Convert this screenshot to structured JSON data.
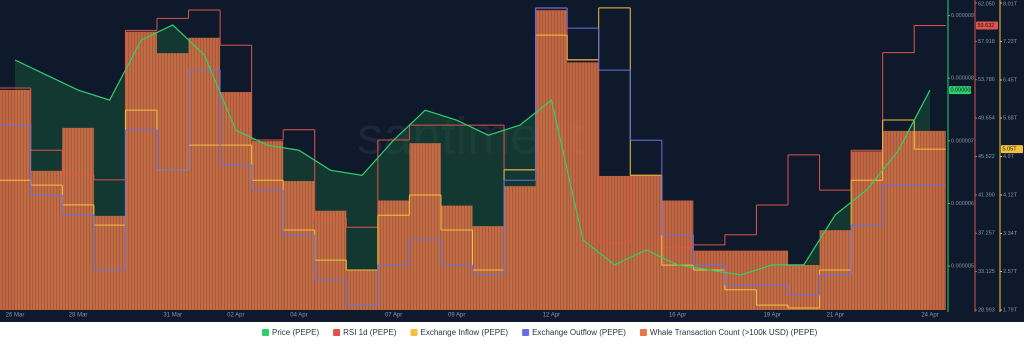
{
  "chart_data": {
    "type": "combo",
    "watermark": "santiment",
    "categories": [
      "26 Mar",
      null,
      "28 Mar",
      null,
      null,
      "31 Mar",
      null,
      "02 Apr",
      null,
      "04 Apr",
      null,
      null,
      "07 Apr",
      null,
      "09 Apr",
      null,
      null,
      "12 Apr",
      null,
      null,
      null,
      "16 Apr",
      null,
      null,
      "19 Apr",
      null,
      "21 Apr",
      null,
      null,
      "24 Apr"
    ],
    "ylim": [
      4.3e-06,
      9.2e-06
    ],
    "yticks": [
      5e-06,
      6e-06,
      7e-06,
      8e-06,
      9e-06
    ],
    "y2lim": [
      28.993,
      62.05
    ],
    "y2ticks": [
      {
        "value": 62.05,
        "label": "62.050"
      },
      {
        "value": 57.918,
        "label": "57.918"
      },
      {
        "value": 53.786,
        "label": "53.786"
      },
      {
        "value": 49.654,
        "label": "49.654"
      },
      {
        "value": 45.522,
        "label": "45.522"
      },
      {
        "value": 41.39,
        "label": "41.390"
      },
      {
        "value": 37.257,
        "label": "37.257"
      },
      {
        "value": 33.125,
        "label": "33.125"
      },
      {
        "value": 28.993,
        "label": "28.993"
      }
    ],
    "y3lim": [
      1.79,
      8.01
    ],
    "y3ticks": [
      {
        "value": 8.01,
        "label": "8.01T"
      },
      {
        "value": 7.23,
        "label": "7.23T"
      },
      {
        "value": 6.45,
        "label": "6.45T"
      },
      {
        "value": 5.68,
        "label": "5.68T"
      },
      {
        "value": 4.9,
        "label": "4.9T"
      },
      {
        "value": 4.12,
        "label": "4.12T"
      },
      {
        "value": 3.34,
        "label": "3.34T"
      },
      {
        "value": 2.57,
        "label": "2.57T"
      },
      {
        "value": 1.79,
        "label": "1.79T"
      }
    ],
    "y4lim": [
      0,
      300
    ],
    "grid": false,
    "series": [
      {
        "name": "Price (PEPE)",
        "type": "line",
        "axis": "y",
        "color": "#2fd06a",
        "last_label": "0.000008",
        "values": [
          8.29e-06,
          8.05e-06,
          7.81e-06,
          7.65e-06,
          8.61e-06,
          8.85e-06,
          8.37e-06,
          7.17e-06,
          6.93e-06,
          6.85e-06,
          6.53e-06,
          6.45e-06,
          7.01e-06,
          7.49e-06,
          7.33e-06,
          7.09e-06,
          7.25e-06,
          7.65e-06,
          5.42e-06,
          5.02e-06,
          5.26e-06,
          5.02e-06,
          4.94e-06,
          4.86e-06,
          5.02e-06,
          5.02e-06,
          5.82e-06,
          6.22e-06,
          6.85e-06,
          7.81e-06
        ]
      },
      {
        "name": "RSI 1d (PEPE)",
        "type": "step",
        "axis": "y2",
        "color": "#e0524a",
        "last_label": "59.632",
        "values": [
          52.9,
          46.2,
          43.5,
          43.0,
          59.1,
          60.4,
          61.3,
          57.5,
          47.3,
          48.4,
          38.9,
          37.9,
          47.3,
          48.9,
          48.9,
          48.9,
          44.1,
          61.5,
          55.9,
          36.2,
          43.5,
          35.7,
          36.0,
          37.1,
          40.3,
          45.7,
          41.9,
          46.2,
          56.7,
          59.632
        ]
      },
      {
        "name": "Exchange Inflow (PEPE)",
        "type": "step",
        "axis": "y3",
        "color": "#f2c23c",
        "last_label": "5.05T",
        "values": [
          4.42,
          4.32,
          3.92,
          3.51,
          5.84,
          4.63,
          5.13,
          5.13,
          4.42,
          3.41,
          2.8,
          2.6,
          3.71,
          4.12,
          3.41,
          2.6,
          4.63,
          7.36,
          6.86,
          7.91,
          4.52,
          2.7,
          2.6,
          2.2,
          1.89,
          1.83,
          2.6,
          4.42,
          5.64,
          5.05
        ]
      },
      {
        "name": "Exchange Outflow (PEPE)",
        "type": "step",
        "axis": "y3",
        "color": "#6a6fe0",
        "values": [
          5.54,
          4.12,
          3.71,
          2.6,
          5.44,
          4.63,
          6.65,
          4.73,
          4.22,
          3.31,
          2.4,
          1.89,
          2.7,
          3.21,
          2.7,
          2.5,
          4.42,
          7.91,
          7.5,
          6.65,
          5.23,
          3.31,
          2.7,
          2.3,
          2.3,
          2.09,
          2.5,
          3.51,
          4.32,
          4.32
        ]
      },
      {
        "name": "Whale Transaction Count (>100k USD) (PEPE)",
        "type": "bar",
        "axis": "y4",
        "color": "#e8784a",
        "values": [
          215,
          136,
          178,
          92,
          272,
          251,
          266,
          213,
          165,
          126,
          97,
          39,
          107,
          163,
          102,
          82,
          121,
          293,
          242,
          131,
          131,
          107,
          58,
          58,
          58,
          44,
          78,
          155,
          175,
          175
        ]
      }
    ]
  }
}
